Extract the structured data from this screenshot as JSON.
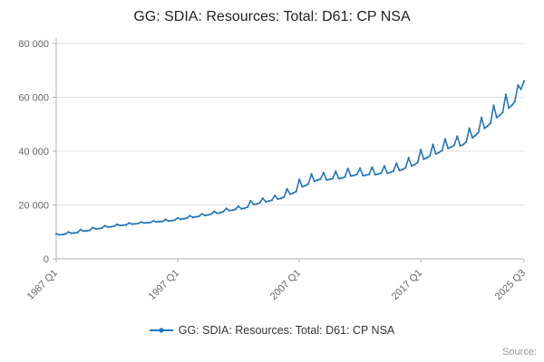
{
  "title": "GG: SDIA: Resources: Total: D61: CP NSA",
  "legend": "GG: SDIA: Resources: Total: D61: CP NSA",
  "source_label": "Source:",
  "colors": {
    "line": "#2175bb",
    "grid": "#e0e0e0",
    "axis": "#b3b3b3",
    "tick_text": "#666666",
    "title_text": "#222222"
  },
  "chart_data": {
    "type": "line",
    "title": "GG: SDIA: Resources: Total: D61: CP NSA",
    "xlabel": "",
    "ylabel": "",
    "frequency": "quarterly",
    "x_start": "1987 Q1",
    "x_end": "2025 Q3",
    "ylim": [
      0,
      80000
    ],
    "y_ticks": [
      0,
      20000,
      40000,
      60000,
      80000
    ],
    "y_tick_labels": [
      "0",
      "20 000",
      "40 000",
      "60 000",
      "80 000"
    ],
    "x_tick_labels": [
      "1987 Q1",
      "1997 Q1",
      "2007 Q1",
      "2017 Q1",
      "2025 Q3"
    ],
    "x_tick_indices": [
      0,
      40,
      80,
      120,
      154
    ],
    "grid": "horizontal",
    "legend_position": "bottom",
    "series": [
      {
        "name": "GG: SDIA: Resources: Total: D61: CP NSA",
        "start": "1987 Q1",
        "values": [
          9300,
          8900,
          9000,
          9200,
          10000,
          9500,
          9600,
          9800,
          10800,
          10300,
          10400,
          10600,
          11600,
          11100,
          11200,
          11400,
          12300,
          11800,
          11900,
          12100,
          12800,
          12400,
          12500,
          12600,
          13300,
          12900,
          13000,
          13100,
          13700,
          13300,
          13400,
          13500,
          14100,
          13700,
          13800,
          13900,
          14600,
          14100,
          14200,
          14400,
          15200,
          14700,
          14900,
          15100,
          16000,
          15400,
          15600,
          15800,
          16700,
          16100,
          16300,
          16600,
          17600,
          16900,
          17100,
          17500,
          18700,
          17900,
          18100,
          18400,
          19500,
          18600,
          18800,
          19200,
          21500,
          20200,
          20400,
          20800,
          22500,
          21200,
          21400,
          21800,
          23500,
          22200,
          22500,
          23000,
          26000,
          24000,
          24400,
          25000,
          29500,
          26800,
          27200,
          27800,
          31500,
          28800,
          29200,
          29600,
          32000,
          29300,
          29500,
          29800,
          32500,
          29800,
          30000,
          30400,
          33500,
          30800,
          31000,
          31400,
          33600,
          30900,
          31100,
          31400,
          34000,
          31300,
          31500,
          31900,
          34500,
          31800,
          32100,
          32600,
          35500,
          32800,
          33200,
          33800,
          37500,
          34500,
          35000,
          35800,
          40500,
          37000,
          37500,
          38200,
          42500,
          39000,
          39500,
          40200,
          44500,
          41000,
          41500,
          42200,
          45500,
          42000,
          42500,
          43500,
          48500,
          45000,
          45800,
          47000,
          52500,
          48500,
          49300,
          50500,
          57000,
          52500,
          53300,
          54500,
          61000,
          56000,
          57000,
          58500,
          64500,
          63000,
          66000
        ]
      }
    ]
  }
}
